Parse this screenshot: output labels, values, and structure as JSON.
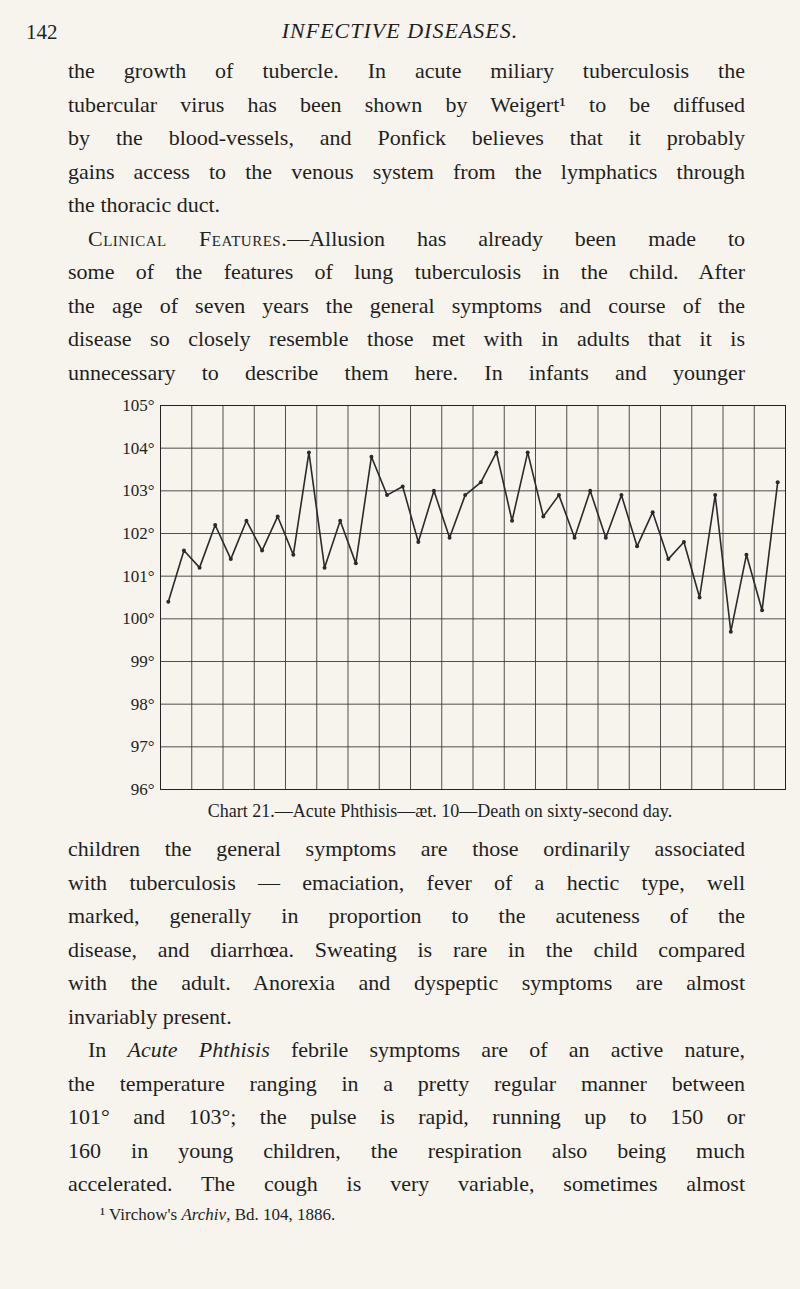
{
  "page": {
    "page_number": "142",
    "running_head": "INFECTIVE DISEASES.",
    "text_before_chart": [
      {
        "lines": [
          "the growth of tubercle. In acute miliary tuberculosis the",
          "tubercular virus has been shown by Weigert¹ to be diffused",
          "by the blood-vessels, and Ponfick believes that it probably",
          "gains access to the venous system from the lymphatics through",
          "the thoracic duct."
        ]
      },
      {
        "small_caps": "Clinical Features.",
        "lines": [
          "Clinical Features.—Allusion has already been made to",
          "some of the features of lung tuberculosis in the child. After",
          "the age of seven years the general symptoms and course of the",
          "disease so closely resemble those met with in adults that it is",
          "unnecessary to describe them here. In infants and younger"
        ]
      }
    ],
    "text_after_chart": [
      {
        "lines": [
          "children the general symptoms are those ordinarily associated",
          "with tuberculosis — emaciation, fever of a hectic type, well",
          "marked, generally in proportion to the acuteness of the",
          "disease, and diarrhœa. Sweating is rare in the child compared",
          "with the adult. Anorexia and dyspeptic symptoms are almost",
          "invariably present."
        ]
      },
      {
        "italic": "Acute Phthisis",
        "lines": [
          "In Acute Phthisis febrile symptoms are of an active nature,",
          "the temperature ranging in a pretty regular manner between",
          "101° and 103°; the pulse is rapid, running up to 150 or",
          "160 in young children, the respiration also being much",
          "accelerated. The cough is very variable, sometimes almost"
        ]
      }
    ],
    "footnote": {
      "text": "¹ Virchow's Archiv, Bd. 104, 1886.",
      "italic": "Archiv"
    }
  },
  "chart_data": {
    "type": "line",
    "title": "Chart 21.—Acute Phthisis—æt. 10—Death on sixty-second day.",
    "x": [
      0.5,
      1.5,
      2.5,
      3.5,
      4.5,
      5.5,
      6.5,
      7.5,
      8.5,
      9.5,
      10.5,
      11.5,
      12.5,
      13.5,
      14.5,
      15.5,
      16.5,
      17.5,
      18.5,
      19.5,
      20.5,
      21.5,
      22.5,
      23.5,
      24.5,
      25.5,
      26.5,
      27.5,
      28.5,
      29.5,
      30.5,
      31.5,
      32.5,
      33.5,
      34.5,
      35.5,
      36.5,
      37.5,
      38.5,
      39.5
    ],
    "values": [
      100.4,
      101.6,
      101.2,
      102.2,
      101.4,
      102.3,
      101.6,
      102.4,
      101.5,
      103.9,
      101.2,
      102.3,
      101.3,
      103.8,
      102.9,
      103.1,
      101.8,
      103.0,
      101.9,
      102.9,
      103.2,
      103.9,
      102.3,
      103.9,
      102.4,
      102.9,
      101.9,
      103.0,
      101.9,
      102.9,
      101.7,
      102.5,
      101.4,
      101.8,
      100.5,
      102.9,
      99.7,
      101.5,
      100.2,
      103.2
    ],
    "xlim": [
      0,
      40
    ],
    "xticks": [
      0,
      2,
      4,
      6,
      8,
      10,
      12,
      14,
      16,
      18,
      20,
      22,
      24,
      26,
      28,
      30,
      32,
      34,
      36,
      38,
      40
    ],
    "ylim": [
      96,
      105
    ],
    "yticks": [
      {
        "value": 96,
        "label": "96°"
      },
      {
        "value": 97,
        "label": "97°"
      },
      {
        "value": 98,
        "label": "98°"
      },
      {
        "value": 99,
        "label": "99°"
      },
      {
        "value": 100,
        "label": "100°"
      },
      {
        "value": 101,
        "label": "101°"
      },
      {
        "value": 102,
        "label": "102°"
      },
      {
        "value": 103,
        "label": "103°"
      },
      {
        "value": 104,
        "label": "104°"
      },
      {
        "value": 105,
        "label": "105°"
      }
    ],
    "grid": true,
    "tick_labels": "y",
    "color": "#2a2a2a",
    "marker": "dot"
  }
}
